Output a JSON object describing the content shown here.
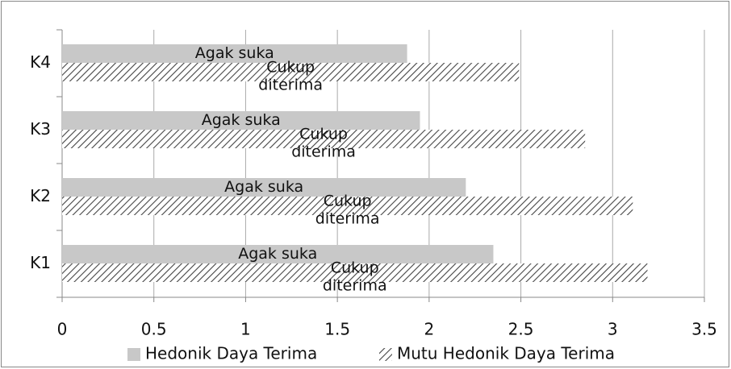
{
  "chart_data": {
    "type": "bar",
    "orientation": "horizontal",
    "categories": [
      "K1",
      "K2",
      "K3",
      "K4"
    ],
    "series": [
      {
        "name": "Hedonik Daya Terima",
        "color": "#c8c8c8",
        "pattern": "solid",
        "values": [
          2.35,
          2.2,
          1.95,
          1.88
        ],
        "value_labels": [
          "Agak suka",
          "Agak suka",
          "Agak suka",
          "Agak suka"
        ]
      },
      {
        "name": "Mutu Hedonik Daya Terima",
        "color": "#444444",
        "pattern": "hatch",
        "values": [
          3.19,
          3.11,
          2.85,
          2.49
        ],
        "value_labels": [
          "Cukup diterima",
          "Cukup diterima",
          "Cukup diterima",
          "Cukup diterima"
        ]
      }
    ],
    "xlim": [
      0,
      3.5
    ],
    "xticks": [
      0,
      0.5,
      1,
      1.5,
      2,
      2.5,
      3,
      3.5
    ],
    "grid": true,
    "legend": "bottom"
  }
}
